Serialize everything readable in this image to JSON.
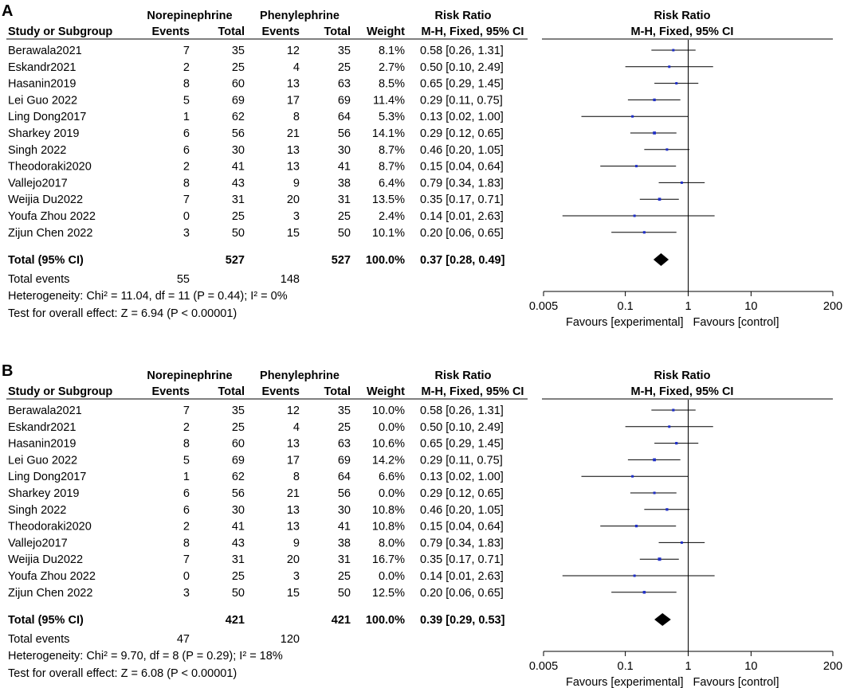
{
  "chart_data": [
    {
      "type": "forest",
      "panel_label": "A",
      "group_headers": {
        "experimental": "Norepinephrine",
        "control": "Phenylephrine",
        "risk_ratio": "Risk Ratio",
        "plot_title": "Risk Ratio"
      },
      "column_headers": {
        "study": "Study or Subgroup",
        "events_exp": "Events",
        "total_exp": "Total",
        "events_ctl": "Events",
        "total_ctl": "Total",
        "weight": "Weight",
        "ci": "M-H, Fixed, 95% CI",
        "plot_subtitle": "M-H, Fixed, 95% CI"
      },
      "studies": [
        {
          "name": "Berawala2021",
          "e1": "7",
          "n1": "35",
          "e2": "12",
          "n2": "35",
          "weight": "8.1%",
          "ci_text": "0.58 [0.26, 1.31]",
          "rr": 0.58,
          "lo": 0.26,
          "hi": 1.31,
          "w": 8.1
        },
        {
          "name": "Eskandr2021",
          "e1": "2",
          "n1": "25",
          "e2": "4",
          "n2": "25",
          "weight": "2.7%",
          "ci_text": "0.50 [0.10, 2.49]",
          "rr": 0.5,
          "lo": 0.1,
          "hi": 2.49,
          "w": 2.7
        },
        {
          "name": "Hasanin2019",
          "e1": "8",
          "n1": "60",
          "e2": "13",
          "n2": "63",
          "weight": "8.5%",
          "ci_text": "0.65 [0.29, 1.45]",
          "rr": 0.65,
          "lo": 0.29,
          "hi": 1.45,
          "w": 8.5
        },
        {
          "name": "Lei Guo 2022",
          "e1": "5",
          "n1": "69",
          "e2": "17",
          "n2": "69",
          "weight": "11.4%",
          "ci_text": "0.29 [0.11, 0.75]",
          "rr": 0.29,
          "lo": 0.11,
          "hi": 0.75,
          "w": 11.4
        },
        {
          "name": "Ling Dong2017",
          "e1": "1",
          "n1": "62",
          "e2": "8",
          "n2": "64",
          "weight": "5.3%",
          "ci_text": "0.13 [0.02, 1.00]",
          "rr": 0.13,
          "lo": 0.02,
          "hi": 1.0,
          "w": 5.3
        },
        {
          "name": "Sharkey 2019",
          "e1": "6",
          "n1": "56",
          "e2": "21",
          "n2": "56",
          "weight": "14.1%",
          "ci_text": "0.29 [0.12, 0.65]",
          "rr": 0.29,
          "lo": 0.12,
          "hi": 0.65,
          "w": 14.1
        },
        {
          "name": "Singh 2022",
          "e1": "6",
          "n1": "30",
          "e2": "13",
          "n2": "30",
          "weight": "8.7%",
          "ci_text": "0.46 [0.20, 1.05]",
          "rr": 0.46,
          "lo": 0.2,
          "hi": 1.05,
          "w": 8.7
        },
        {
          "name": "Theodoraki2020",
          "e1": "2",
          "n1": "41",
          "e2": "13",
          "n2": "41",
          "weight": "8.7%",
          "ci_text": "0.15 [0.04, 0.64]",
          "rr": 0.15,
          "lo": 0.04,
          "hi": 0.64,
          "w": 8.7
        },
        {
          "name": "Vallejo2017",
          "e1": "8",
          "n1": "43",
          "e2": "9",
          "n2": "38",
          "weight": "6.4%",
          "ci_text": "0.79 [0.34, 1.83]",
          "rr": 0.79,
          "lo": 0.34,
          "hi": 1.83,
          "w": 6.4
        },
        {
          "name": "Weijia Du2022",
          "e1": "7",
          "n1": "31",
          "e2": "20",
          "n2": "31",
          "weight": "13.5%",
          "ci_text": "0.35 [0.17, 0.71]",
          "rr": 0.35,
          "lo": 0.17,
          "hi": 0.71,
          "w": 13.5
        },
        {
          "name": "Youfa Zhou 2022",
          "e1": "0",
          "n1": "25",
          "e2": "3",
          "n2": "25",
          "weight": "2.4%",
          "ci_text": "0.14 [0.01, 2.63]",
          "rr": 0.14,
          "lo": 0.01,
          "hi": 2.63,
          "w": 2.4
        },
        {
          "name": "Zijun Chen 2022",
          "e1": "3",
          "n1": "50",
          "e2": "15",
          "n2": "50",
          "weight": "10.1%",
          "ci_text": "0.20 [0.06, 0.65]",
          "rr": 0.2,
          "lo": 0.06,
          "hi": 0.65,
          "w": 10.1
        }
      ],
      "total": {
        "label": "Total (95% CI)",
        "n1": "527",
        "n2": "527",
        "weight": "100.0%",
        "ci_text": "0.37 [0.28, 0.49]",
        "rr": 0.37,
        "lo": 0.28,
        "hi": 0.49
      },
      "total_events": {
        "label": "Total events",
        "e1": "55",
        "e2": "148"
      },
      "heterogeneity": "Heterogeneity: Chi² = 11.04, df = 11 (P = 0.44); I² = 0%",
      "overall_effect": "Test for overall effect: Z = 6.94 (P < 0.00001)",
      "x_axis": {
        "scale": "log",
        "range": [
          0.005,
          200
        ],
        "ticks": [
          0.005,
          0.1,
          1,
          10,
          200
        ],
        "tick_labels": [
          "0.005",
          "0.1",
          "1",
          "10",
          "200"
        ],
        "favours_left": "Favours [experimental]",
        "favours_right": "Favours [control]"
      }
    },
    {
      "type": "forest",
      "panel_label": "B",
      "group_headers": {
        "experimental": "Norepinephrine",
        "control": "Phenylephrine",
        "risk_ratio": "Risk Ratio",
        "plot_title": "Risk Ratio"
      },
      "column_headers": {
        "study": "Study or Subgroup",
        "events_exp": "Events",
        "total_exp": "Total",
        "events_ctl": "Events",
        "total_ctl": "Total",
        "weight": "Weight",
        "ci": "M-H, Fixed, 95% CI",
        "plot_subtitle": "M-H, Fixed, 95% CI"
      },
      "studies": [
        {
          "name": "Berawala2021",
          "e1": "7",
          "n1": "35",
          "e2": "12",
          "n2": "35",
          "weight": "10.0%",
          "ci_text": "0.58 [0.26, 1.31]",
          "rr": 0.58,
          "lo": 0.26,
          "hi": 1.31,
          "w": 10.0
        },
        {
          "name": "Eskandr2021",
          "e1": "2",
          "n1": "25",
          "e2": "4",
          "n2": "25",
          "weight": "0.0%",
          "ci_text": "0.50 [0.10, 2.49]",
          "rr": 0.5,
          "lo": 0.1,
          "hi": 2.49,
          "w": 0.0
        },
        {
          "name": "Hasanin2019",
          "e1": "8",
          "n1": "60",
          "e2": "13",
          "n2": "63",
          "weight": "10.6%",
          "ci_text": "0.65 [0.29, 1.45]",
          "rr": 0.65,
          "lo": 0.29,
          "hi": 1.45,
          "w": 10.6
        },
        {
          "name": "Lei Guo 2022",
          "e1": "5",
          "n1": "69",
          "e2": "17",
          "n2": "69",
          "weight": "14.2%",
          "ci_text": "0.29 [0.11, 0.75]",
          "rr": 0.29,
          "lo": 0.11,
          "hi": 0.75,
          "w": 14.2
        },
        {
          "name": "Ling Dong2017",
          "e1": "1",
          "n1": "62",
          "e2": "8",
          "n2": "64",
          "weight": "6.6%",
          "ci_text": "0.13 [0.02, 1.00]",
          "rr": 0.13,
          "lo": 0.02,
          "hi": 1.0,
          "w": 6.6
        },
        {
          "name": "Sharkey 2019",
          "e1": "6",
          "n1": "56",
          "e2": "21",
          "n2": "56",
          "weight": "0.0%",
          "ci_text": "0.29 [0.12, 0.65]",
          "rr": 0.29,
          "lo": 0.12,
          "hi": 0.65,
          "w": 0.0
        },
        {
          "name": "Singh 2022",
          "e1": "6",
          "n1": "30",
          "e2": "13",
          "n2": "30",
          "weight": "10.8%",
          "ci_text": "0.46 [0.20, 1.05]",
          "rr": 0.46,
          "lo": 0.2,
          "hi": 1.05,
          "w": 10.8
        },
        {
          "name": "Theodoraki2020",
          "e1": "2",
          "n1": "41",
          "e2": "13",
          "n2": "41",
          "weight": "10.8%",
          "ci_text": "0.15 [0.04, 0.64]",
          "rr": 0.15,
          "lo": 0.04,
          "hi": 0.64,
          "w": 10.8
        },
        {
          "name": "Vallejo2017",
          "e1": "8",
          "n1": "43",
          "e2": "9",
          "n2": "38",
          "weight": "8.0%",
          "ci_text": "0.79 [0.34, 1.83]",
          "rr": 0.79,
          "lo": 0.34,
          "hi": 1.83,
          "w": 8.0
        },
        {
          "name": "Weijia Du2022",
          "e1": "7",
          "n1": "31",
          "e2": "20",
          "n2": "31",
          "weight": "16.7%",
          "ci_text": "0.35 [0.17, 0.71]",
          "rr": 0.35,
          "lo": 0.17,
          "hi": 0.71,
          "w": 16.7
        },
        {
          "name": "Youfa Zhou 2022",
          "e1": "0",
          "n1": "25",
          "e2": "3",
          "n2": "25",
          "weight": "0.0%",
          "ci_text": "0.14 [0.01, 2.63]",
          "rr": 0.14,
          "lo": 0.01,
          "hi": 2.63,
          "w": 0.0
        },
        {
          "name": "Zijun Chen 2022",
          "e1": "3",
          "n1": "50",
          "e2": "15",
          "n2": "50",
          "weight": "12.5%",
          "ci_text": "0.20 [0.06, 0.65]",
          "rr": 0.2,
          "lo": 0.06,
          "hi": 0.65,
          "w": 12.5
        }
      ],
      "total": {
        "label": "Total (95% CI)",
        "n1": "421",
        "n2": "421",
        "weight": "100.0%",
        "ci_text": "0.39 [0.29, 0.53]",
        "rr": 0.39,
        "lo": 0.29,
        "hi": 0.53
      },
      "total_events": {
        "label": "Total events",
        "e1": "47",
        "e2": "120"
      },
      "heterogeneity": "Heterogeneity: Chi² = 9.70, df = 8 (P = 0.29); I² = 18%",
      "overall_effect": "Test for overall effect: Z = 6.08 (P < 0.00001)",
      "x_axis": {
        "scale": "log",
        "range": [
          0.005,
          200
        ],
        "ticks": [
          0.005,
          0.1,
          1,
          10,
          200
        ],
        "tick_labels": [
          "0.005",
          "0.1",
          "1",
          "10",
          "200"
        ],
        "favours_left": "Favours [experimental]",
        "favours_right": "Favours [control]"
      }
    }
  ],
  "colors": {
    "marker": "#1f2fc8",
    "diamond": "#000000",
    "line": "#000000",
    "text": "#000000"
  }
}
